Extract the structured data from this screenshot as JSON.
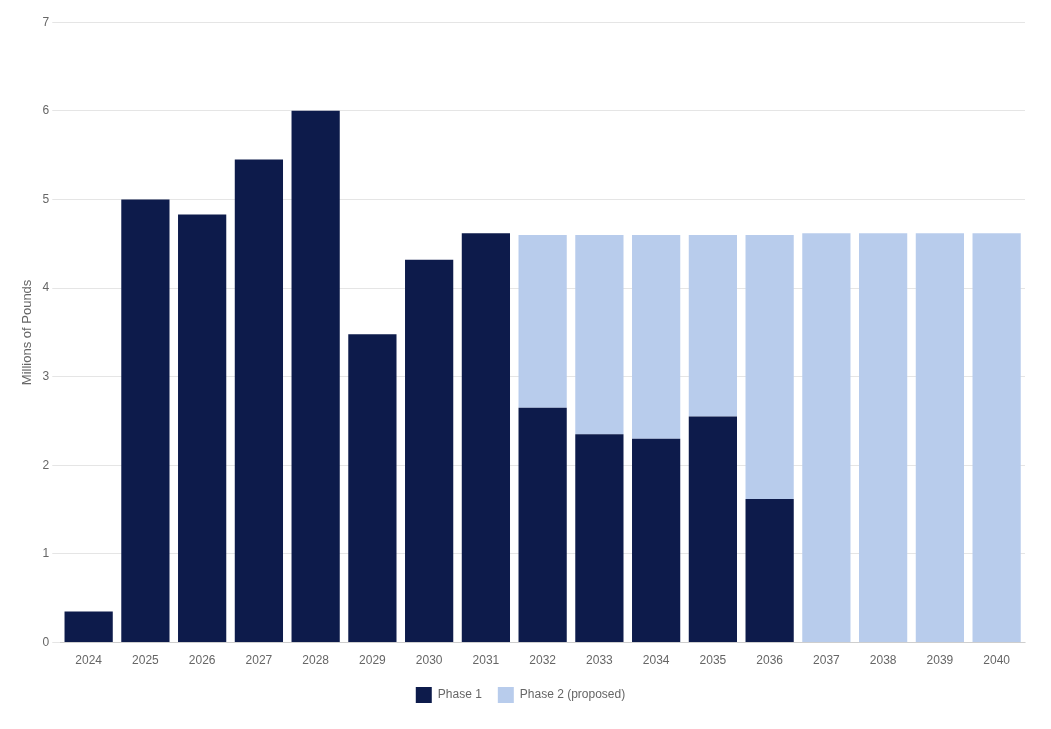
{
  "chart_data": {
    "type": "bar",
    "stacked": true,
    "categories": [
      "2024",
      "2025",
      "2026",
      "2027",
      "2028",
      "2029",
      "2030",
      "2031",
      "2032",
      "2033",
      "2034",
      "2035",
      "2036",
      "2037",
      "2038",
      "2039",
      "2040"
    ],
    "series": [
      {
        "name": "Phase 1",
        "color": "#0d1b4b",
        "values": [
          0.35,
          5.0,
          4.83,
          5.45,
          6.0,
          3.48,
          4.32,
          4.62,
          2.65,
          2.35,
          2.3,
          2.55,
          1.62,
          0.0,
          0.0,
          0.0,
          0.0
        ]
      },
      {
        "name": "Phase 2 (proposed)",
        "color": "#b8ccec",
        "values": [
          0.0,
          0.0,
          0.0,
          0.0,
          0.0,
          0.0,
          0.0,
          0.0,
          1.95,
          2.25,
          2.3,
          2.05,
          2.98,
          4.62,
          4.62,
          4.62,
          4.62
        ]
      }
    ],
    "ylabel": "Millions of Pounds",
    "ylim": [
      0,
      7
    ],
    "yticks": [
      0,
      1,
      2,
      3,
      4,
      5,
      6,
      7
    ],
    "grid": true,
    "legend": "bottom"
  }
}
